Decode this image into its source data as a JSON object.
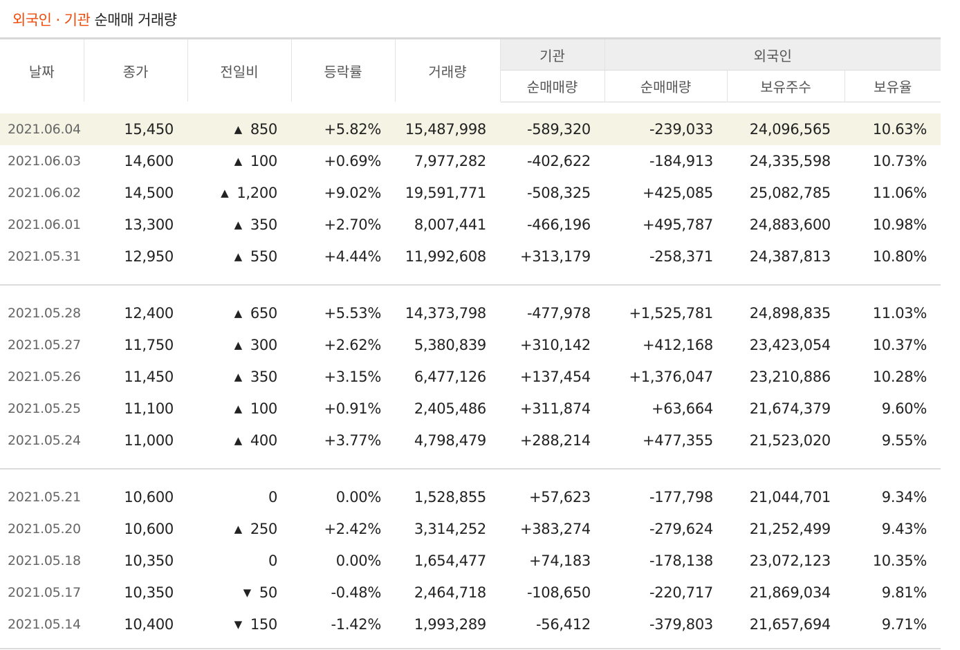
{
  "title": {
    "accent1": "외국인",
    "dot": "·",
    "accent2": "기관",
    "rest": "순매매 거래량"
  },
  "headers": {
    "date": "날짜",
    "close": "종가",
    "change": "전일비",
    "rate": "등락률",
    "volume": "거래량",
    "inst_group": "기관",
    "foreign_group": "외국인",
    "inst_net": "순매매량",
    "foreign_net": "순매매량",
    "foreign_shares": "보유주수",
    "foreign_ratio": "보유율"
  },
  "colors": {
    "up": "#e0001a",
    "down": "#0a4fd0",
    "accent": "#f04b0b",
    "highlight": "#f5f3e4"
  },
  "rows": [
    {
      "date": "2021.06.04",
      "close": "15,450",
      "dir": "up",
      "change": "850",
      "rate": "+5.82%",
      "volume": "15,487,998",
      "inst": "-589,320",
      "foreign": "-239,033",
      "shares": "24,096,565",
      "ratio": "10.63%"
    },
    {
      "date": "2021.06.03",
      "close": "14,600",
      "dir": "up",
      "change": "100",
      "rate": "+0.69%",
      "volume": "7,977,282",
      "inst": "-402,622",
      "foreign": "-184,913",
      "shares": "24,335,598",
      "ratio": "10.73%"
    },
    {
      "date": "2021.06.02",
      "close": "14,500",
      "dir": "up",
      "change": "1,200",
      "rate": "+9.02%",
      "volume": "19,591,771",
      "inst": "-508,325",
      "foreign": "+425,085",
      "shares": "25,082,785",
      "ratio": "11.06%"
    },
    {
      "date": "2021.06.01",
      "close": "13,300",
      "dir": "up",
      "change": "350",
      "rate": "+2.70%",
      "volume": "8,007,441",
      "inst": "-466,196",
      "foreign": "+495,787",
      "shares": "24,883,600",
      "ratio": "10.98%"
    },
    {
      "date": "2021.05.31",
      "close": "12,950",
      "dir": "up",
      "change": "550",
      "rate": "+4.44%",
      "volume": "11,992,608",
      "inst": "+313,179",
      "foreign": "-258,371",
      "shares": "24,387,813",
      "ratio": "10.80%"
    },
    {
      "date": "2021.05.28",
      "close": "12,400",
      "dir": "up",
      "change": "650",
      "rate": "+5.53%",
      "volume": "14,373,798",
      "inst": "-477,978",
      "foreign": "+1,525,781",
      "shares": "24,898,835",
      "ratio": "11.03%"
    },
    {
      "date": "2021.05.27",
      "close": "11,750",
      "dir": "up",
      "change": "300",
      "rate": "+2.62%",
      "volume": "5,380,839",
      "inst": "+310,142",
      "foreign": "+412,168",
      "shares": "23,423,054",
      "ratio": "10.37%"
    },
    {
      "date": "2021.05.26",
      "close": "11,450",
      "dir": "up",
      "change": "350",
      "rate": "+3.15%",
      "volume": "6,477,126",
      "inst": "+137,454",
      "foreign": "+1,376,047",
      "shares": "23,210,886",
      "ratio": "10.28%"
    },
    {
      "date": "2021.05.25",
      "close": "11,100",
      "dir": "up",
      "change": "100",
      "rate": "+0.91%",
      "volume": "2,405,486",
      "inst": "+311,874",
      "foreign": "+63,664",
      "shares": "21,674,379",
      "ratio": "9.60%"
    },
    {
      "date": "2021.05.24",
      "close": "11,000",
      "dir": "up",
      "change": "400",
      "rate": "+3.77%",
      "volume": "4,798,479",
      "inst": "+288,214",
      "foreign": "+477,355",
      "shares": "21,523,020",
      "ratio": "9.55%"
    },
    {
      "date": "2021.05.21",
      "close": "10,600",
      "dir": "flat",
      "change": "0",
      "rate": "0.00%",
      "volume": "1,528,855",
      "inst": "+57,623",
      "foreign": "-177,798",
      "shares": "21,044,701",
      "ratio": "9.34%"
    },
    {
      "date": "2021.05.20",
      "close": "10,600",
      "dir": "up",
      "change": "250",
      "rate": "+2.42%",
      "volume": "3,314,252",
      "inst": "+383,274",
      "foreign": "-279,624",
      "shares": "21,252,499",
      "ratio": "9.43%"
    },
    {
      "date": "2021.05.18",
      "close": "10,350",
      "dir": "flat",
      "change": "0",
      "rate": "0.00%",
      "volume": "1,654,477",
      "inst": "+74,183",
      "foreign": "-178,138",
      "shares": "23,072,123",
      "ratio": "10.35%"
    },
    {
      "date": "2021.05.17",
      "close": "10,350",
      "dir": "down",
      "change": "50",
      "rate": "-0.48%",
      "volume": "2,464,718",
      "inst": "-108,650",
      "foreign": "-220,717",
      "shares": "21,869,034",
      "ratio": "9.81%"
    },
    {
      "date": "2021.05.14",
      "close": "10,400",
      "dir": "down",
      "change": "150",
      "rate": "-1.42%",
      "volume": "1,993,289",
      "inst": "-56,412",
      "foreign": "-379,803",
      "shares": "21,657,694",
      "ratio": "9.71%"
    }
  ]
}
